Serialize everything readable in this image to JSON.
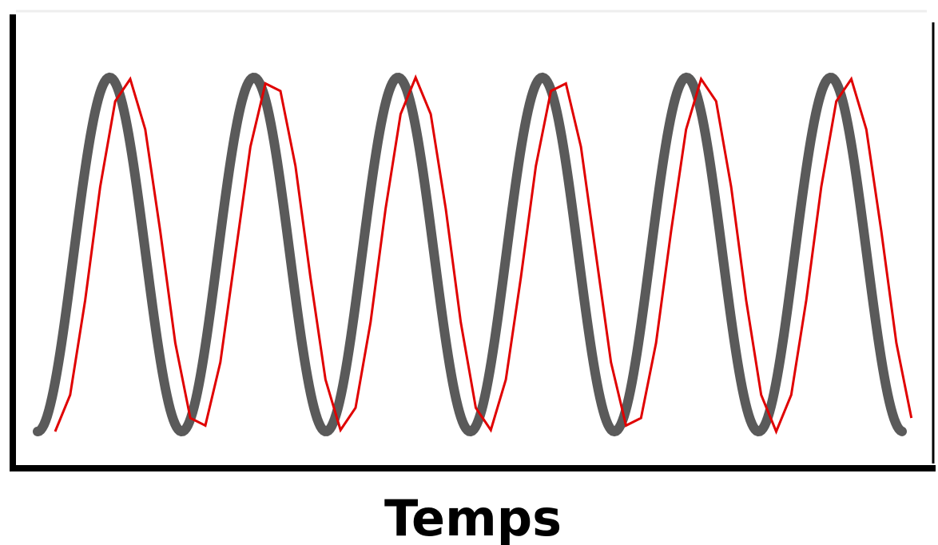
{
  "axis_label": "Temps"
}
